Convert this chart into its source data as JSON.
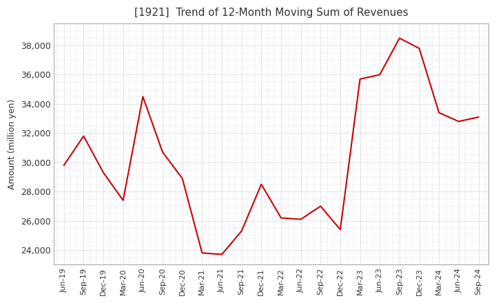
{
  "title": "[1921]  Trend of 12-Month Moving Sum of Revenues",
  "ylabel": "Amount (million yen)",
  "ylim": [
    23000,
    39500
  ],
  "yticks": [
    24000,
    26000,
    28000,
    30000,
    32000,
    34000,
    36000,
    38000
  ],
  "line_color": "#cc0000",
  "bg_color": "#ffffff",
  "grid_color": "#aaaaaa",
  "x_labels": [
    "Jun-19",
    "Sep-19",
    "Dec-19",
    "Mar-20",
    "Jun-20",
    "Sep-20",
    "Dec-20",
    "Mar-21",
    "Jun-21",
    "Sep-21",
    "Dec-21",
    "Mar-22",
    "Jun-22",
    "Sep-22",
    "Dec-22",
    "Mar-23",
    "Jun-23",
    "Sep-23",
    "Dec-23",
    "Mar-24",
    "Jun-24",
    "Sep-24"
  ],
  "values": [
    29800,
    31800,
    29300,
    27400,
    34500,
    30700,
    28900,
    23800,
    23700,
    25300,
    28500,
    26200,
    26100,
    27000,
    25400,
    35700,
    36000,
    38500,
    37800,
    33400,
    32800,
    33100
  ]
}
